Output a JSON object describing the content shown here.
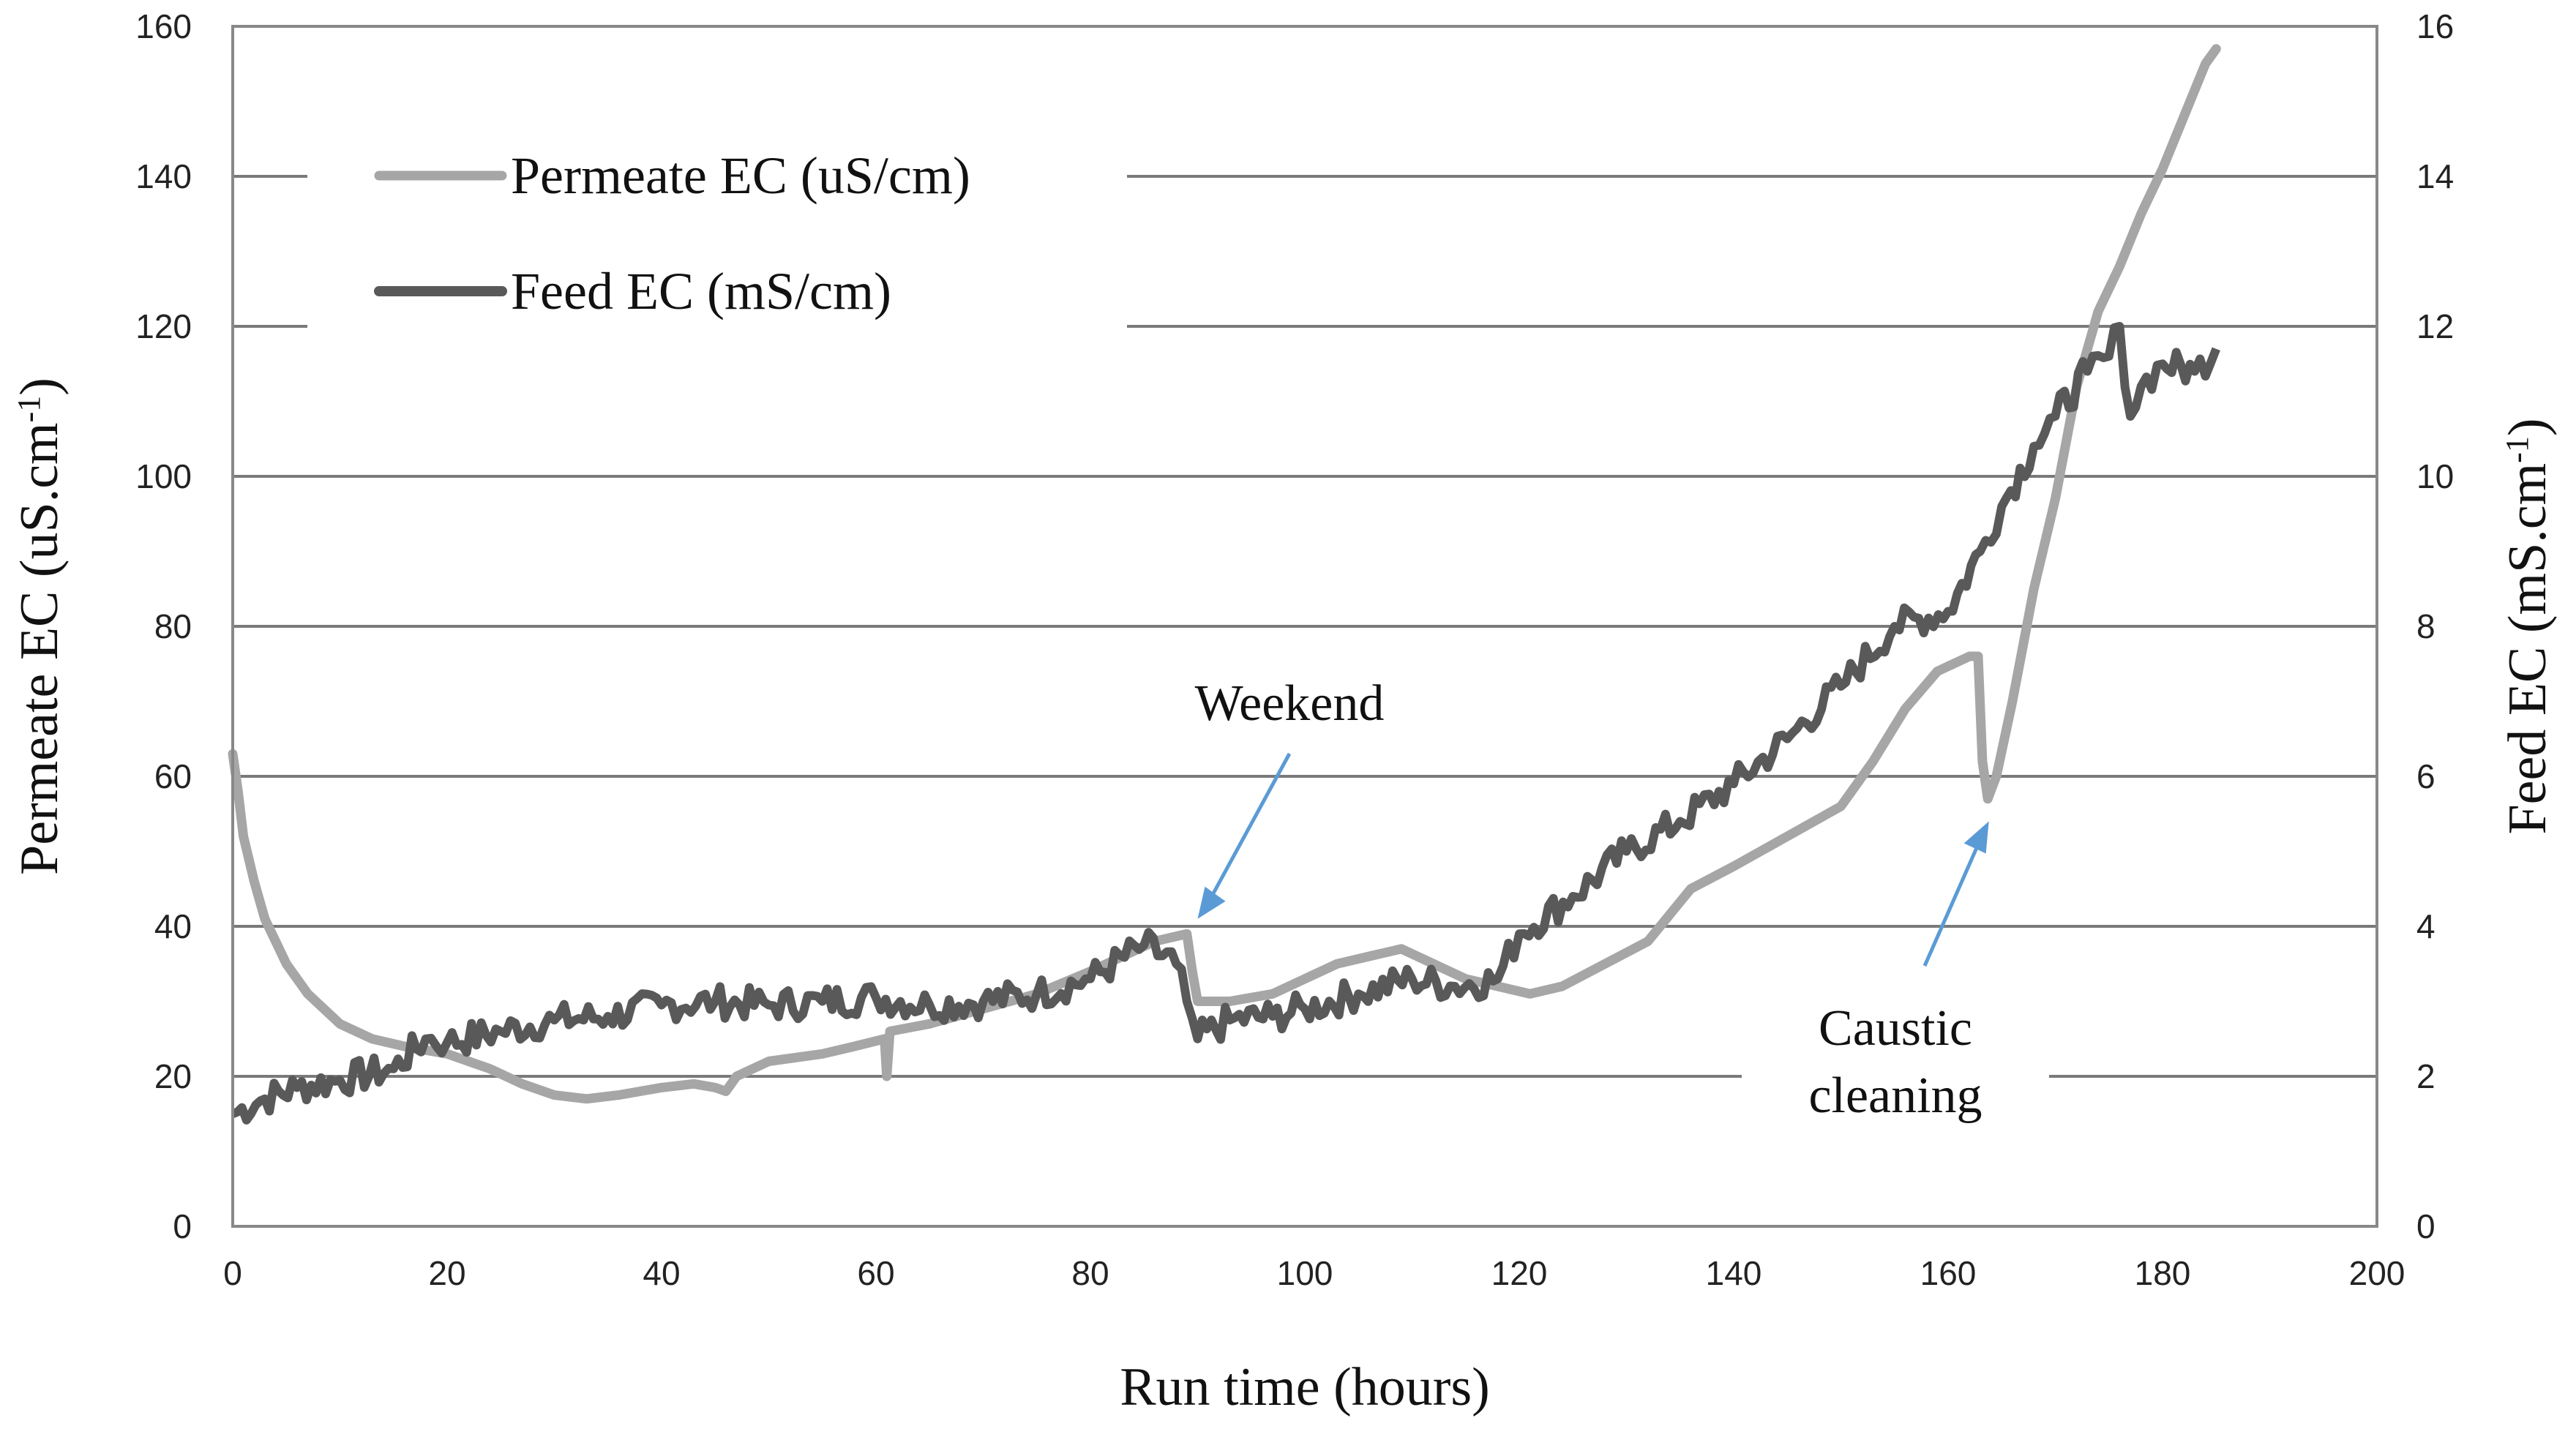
{
  "chart_data": {
    "type": "line",
    "title": "",
    "xlabel": "Run time (hours)",
    "ylabel_left": {
      "main": "Permeate EC (uS.cm",
      "sup": "-1",
      "tail": ")"
    },
    "ylabel_right": {
      "main": "Feed EC (mS.cm",
      "sup": "-1",
      "tail": ")"
    },
    "xlim": [
      0,
      200
    ],
    "ylim_left": [
      0,
      160
    ],
    "ylim_right": [
      0,
      16
    ],
    "x_ticks": [
      "0",
      "20",
      "40",
      "60",
      "80",
      "100",
      "120",
      "140",
      "160",
      "180",
      "200"
    ],
    "y_left_ticks": [
      "0",
      "20",
      "40",
      "60",
      "80",
      "100",
      "120",
      "140",
      "160"
    ],
    "y_right_ticks": [
      "0",
      "2",
      "4",
      "6",
      "8",
      "10",
      "12",
      "14",
      "16"
    ],
    "grid": true,
    "legend_position": "top-left",
    "series": [
      {
        "name": "Permeate EC (uS/cm)",
        "axis": "left",
        "color": "#a6a6a6",
        "points": [
          [
            0,
            63
          ],
          [
            0.5,
            58
          ],
          [
            1,
            52
          ],
          [
            2,
            46
          ],
          [
            3,
            41
          ],
          [
            5,
            35
          ],
          [
            7,
            31
          ],
          [
            10,
            27
          ],
          [
            13,
            25
          ],
          [
            16,
            24
          ],
          [
            20,
            23
          ],
          [
            24,
            21
          ],
          [
            27,
            19
          ],
          [
            30,
            17.5
          ],
          [
            33,
            17
          ],
          [
            36,
            17.5
          ],
          [
            40,
            18.5
          ],
          [
            43,
            19
          ],
          [
            45,
            18.5
          ],
          [
            46,
            18
          ],
          [
            47,
            20
          ],
          [
            50,
            22
          ],
          [
            55,
            23
          ],
          [
            58,
            24
          ],
          [
            60.8,
            25
          ],
          [
            61,
            20
          ],
          [
            61.3,
            26
          ],
          [
            65,
            27
          ],
          [
            70,
            29
          ],
          [
            75,
            31
          ],
          [
            80,
            34
          ],
          [
            83,
            36
          ],
          [
            86,
            38
          ],
          [
            89,
            39
          ],
          [
            89.5,
            34
          ],
          [
            90,
            30
          ],
          [
            93,
            30
          ],
          [
            97,
            31
          ],
          [
            100,
            33
          ],
          [
            103,
            35
          ],
          [
            106,
            36
          ],
          [
            109,
            37
          ],
          [
            112,
            35
          ],
          [
            115,
            33
          ],
          [
            118,
            32
          ],
          [
            121,
            31
          ],
          [
            124,
            32
          ],
          [
            128,
            35
          ],
          [
            132,
            38
          ],
          [
            136,
            45
          ],
          [
            140,
            48
          ],
          [
            145,
            52
          ],
          [
            150,
            56
          ],
          [
            153,
            62
          ],
          [
            156,
            69
          ],
          [
            159,
            74
          ],
          [
            162,
            76
          ],
          [
            162.8,
            76
          ],
          [
            163.2,
            62
          ],
          [
            163.7,
            57
          ],
          [
            164.5,
            60
          ],
          [
            166,
            70
          ],
          [
            168,
            85
          ],
          [
            170,
            97
          ],
          [
            172,
            112
          ],
          [
            174,
            122
          ],
          [
            176,
            128
          ],
          [
            178,
            135
          ],
          [
            180,
            141
          ],
          [
            182,
            148
          ],
          [
            184,
            155
          ],
          [
            185,
            157
          ]
        ]
      },
      {
        "name": "Feed EC (mS/cm)",
        "axis": "right",
        "color": "#595959",
        "points": [
          [
            0,
            1.5
          ],
          [
            3,
            1.7
          ],
          [
            6,
            1.85
          ],
          [
            10,
            1.95
          ],
          [
            15,
            2.1
          ],
          [
            18,
            2.5
          ],
          [
            20,
            2.45
          ],
          [
            25,
            2.6
          ],
          [
            30,
            2.75
          ],
          [
            35,
            2.8
          ],
          [
            40,
            2.95
          ],
          [
            45,
            3.0
          ],
          [
            50,
            2.95
          ],
          [
            55,
            3.0
          ],
          [
            60,
            3.05
          ],
          [
            65,
            2.95
          ],
          [
            70,
            3.0
          ],
          [
            75,
            3.1
          ],
          [
            80,
            3.3
          ],
          [
            85,
            3.75
          ],
          [
            88,
            3.5
          ],
          [
            89,
            3.0
          ],
          [
            90,
            2.5
          ],
          [
            93,
            2.75
          ],
          [
            97,
            2.8
          ],
          [
            100,
            2.9
          ],
          [
            105,
            3.1
          ],
          [
            110,
            3.3
          ],
          [
            114,
            3.2
          ],
          [
            118,
            3.3
          ],
          [
            120,
            3.9
          ],
          [
            125,
            4.4
          ],
          [
            130,
            5.0
          ],
          [
            135,
            5.4
          ],
          [
            140,
            5.9
          ],
          [
            145,
            6.5
          ],
          [
            150,
            7.2
          ],
          [
            155,
            8.0
          ],
          [
            160,
            8.2
          ],
          [
            163,
            9.0
          ],
          [
            165,
            9.6
          ],
          [
            168,
            10.4
          ],
          [
            170,
            10.8
          ],
          [
            173,
            11.4
          ],
          [
            175,
            11.6
          ],
          [
            176,
            12.0
          ],
          [
            177,
            10.8
          ],
          [
            178,
            11.2
          ],
          [
            180,
            11.5
          ],
          [
            183,
            11.4
          ],
          [
            185,
            11.7
          ]
        ]
      }
    ],
    "annotations": [
      {
        "lines": [
          "Weekend"
        ],
        "arrow_to": [
          90,
          41
        ]
      },
      {
        "lines": [
          "Caustic",
          "cleaning"
        ],
        "arrow_to": [
          163.8,
          54
        ]
      }
    ]
  }
}
